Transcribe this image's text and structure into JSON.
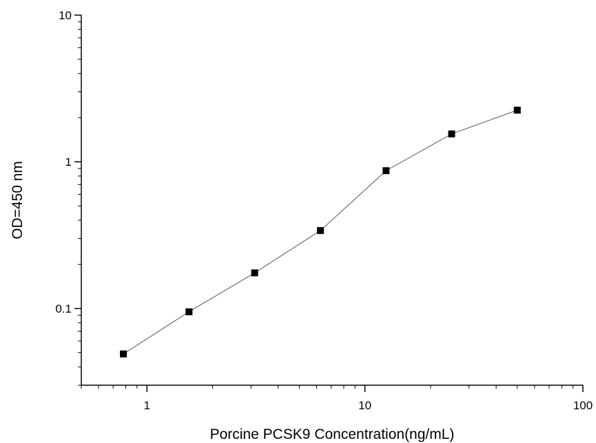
{
  "chart_data": {
    "type": "line",
    "title": "",
    "xlabel": "Porcine PCSK9 Concentration(ng/mL)",
    "ylabel": "OD=450 nm",
    "x_scale": "log",
    "y_scale": "log",
    "xlim": [
      0.5,
      100
    ],
    "ylim": [
      0.03,
      10
    ],
    "x_ticks": [
      {
        "value": 1,
        "label": "1"
      },
      {
        "value": 10,
        "label": "10"
      },
      {
        "value": 100,
        "label": "100"
      }
    ],
    "y_ticks": [
      {
        "value": 0.1,
        "label": "0.1"
      },
      {
        "value": 1,
        "label": "1"
      },
      {
        "value": 10,
        "label": "10"
      }
    ],
    "grid": false,
    "legend": "none",
    "colors": {
      "line": "#555555",
      "marker": "#000000",
      "axis": "#000000"
    },
    "series": [
      {
        "marker": "square",
        "x": [
          0.78,
          1.56,
          3.12,
          6.25,
          12.5,
          25,
          50
        ],
        "y": [
          0.049,
          0.095,
          0.175,
          0.34,
          0.87,
          1.55,
          2.25
        ]
      }
    ]
  }
}
